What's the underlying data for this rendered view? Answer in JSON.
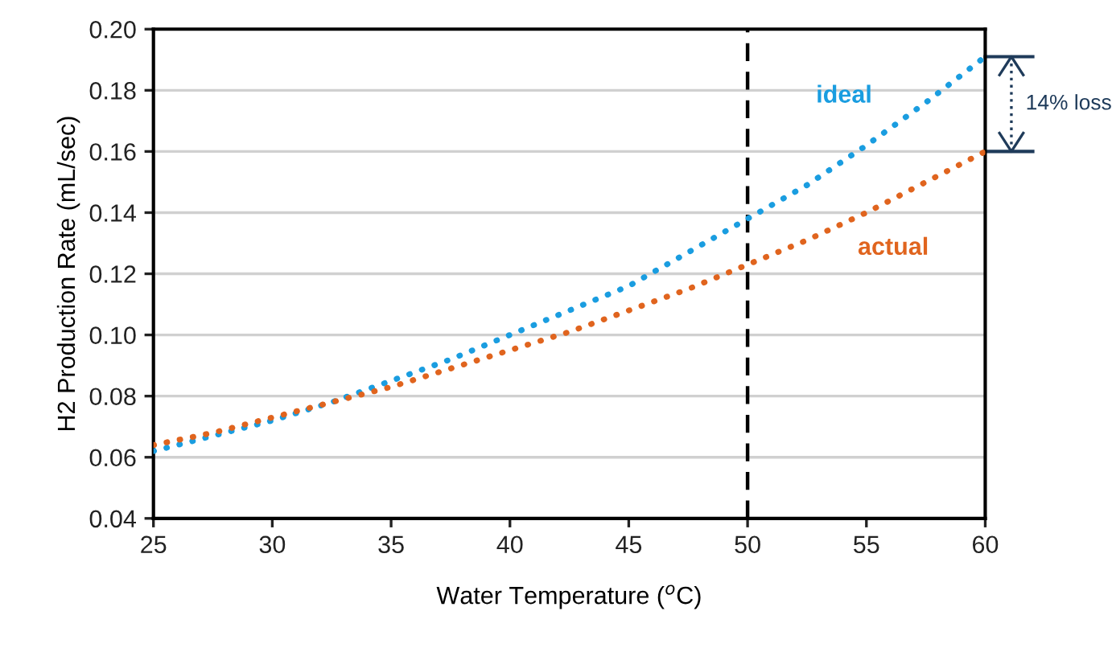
{
  "chart_data": {
    "type": "line",
    "xlabel": "Water Temperature ($^{o}$C)",
    "ylabel": "H2 Production Rate (mL/sec)",
    "x": [
      25,
      27.5,
      30,
      32.5,
      35,
      37.5,
      40,
      42.5,
      45,
      47.5,
      50,
      52.5,
      55,
      57.5,
      60
    ],
    "series": [
      {
        "name": "ideal",
        "color": "#1a9de0",
        "values": [
          0.062,
          0.067,
          0.072,
          0.078,
          0.085,
          0.092,
          0.1,
          0.108,
          0.116,
          0.127,
          0.138,
          0.149,
          0.162,
          0.176,
          0.191
        ]
      },
      {
        "name": "actual",
        "color": "#e0641e",
        "values": [
          0.064,
          0.068,
          0.073,
          0.078,
          0.083,
          0.089,
          0.095,
          0.101,
          0.108,
          0.115,
          0.123,
          0.131,
          0.14,
          0.15,
          0.16
        ]
      }
    ],
    "xlim": [
      25,
      60
    ],
    "xticks": [
      25,
      30,
      35,
      40,
      45,
      50,
      55,
      60
    ],
    "ylim": [
      0.04,
      0.2
    ],
    "yticks": [
      {
        "value": 0.04,
        "label": "0.04"
      },
      {
        "value": 0.06,
        "label": "0.06"
      },
      {
        "value": 0.08,
        "label": "0.08"
      },
      {
        "value": 0.1,
        "label": "0.10"
      },
      {
        "value": 0.12,
        "label": "0.12"
      },
      {
        "value": 0.14,
        "label": "0.14"
      },
      {
        "value": 0.16,
        "label": "0.16"
      },
      {
        "value": 0.18,
        "label": "0.18"
      },
      {
        "value": 0.2,
        "label": "0.20"
      }
    ],
    "ref_lines": [
      {
        "axis": "x",
        "value": 50,
        "color": "#000000",
        "line_style": "dashed"
      }
    ],
    "annotations": [
      "14% loss"
    ],
    "grid": "y",
    "legend": false,
    "line_style": "dotted",
    "marker": "none"
  }
}
